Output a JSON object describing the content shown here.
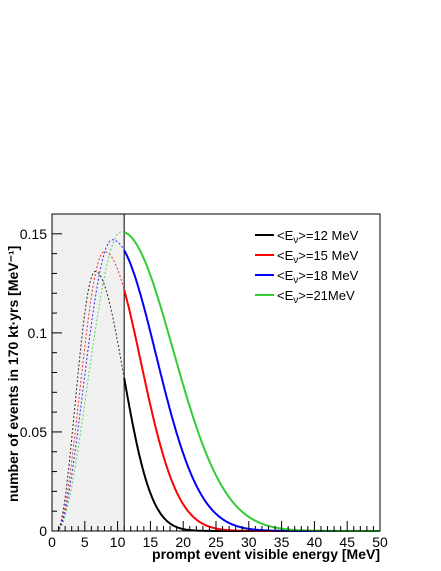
{
  "chart_data": {
    "type": "line",
    "title": "",
    "xlabel": "prompt event visible energy [MeV]",
    "ylabel": "number of events in 170 kt·yrs [MeV⁻¹]",
    "xlim": [
      0,
      50
    ],
    "ylim": [
      0,
      0.16
    ],
    "x_ticks": [
      "0",
      "5",
      "10",
      "15",
      "20",
      "25",
      "30",
      "35",
      "40",
      "45",
      "50"
    ],
    "y_ticks": [
      "0",
      "0.05",
      "0.1",
      "0.15"
    ],
    "grid": false,
    "legend_position": "top-right",
    "shaded_region": {
      "x_range": [
        0,
        11
      ],
      "color": "#f0f0f0"
    },
    "threshold_line_x": 11,
    "series": [
      {
        "name": "<Eν>=12 MeV",
        "legend_main": "<E",
        "legend_sub": "ν",
        "legend_tail": ">=12 MeV",
        "color": "#000000",
        "peak_x": 6.6,
        "peak_y": 0.131,
        "rise_start": 0.8,
        "shape": 1.8,
        "fall_scale": 4.28
      },
      {
        "name": "<Eν>=15 MeV",
        "legend_main": "<E",
        "legend_sub": "ν",
        "legend_tail": ">=15 MeV",
        "color": "#ff0000",
        "peak_x": 8.0,
        "peak_y": 0.141,
        "rise_start": 0.8,
        "shape": 1.8,
        "fall_scale": 5.54
      },
      {
        "name": "<Eν>=18 MeV",
        "legend_main": "<E",
        "legend_sub": "ν",
        "legend_tail": ">=18 MeV",
        "color": "#0000ff",
        "peak_x": 9.2,
        "peak_y": 0.147,
        "rise_start": 0.8,
        "shape": 1.8,
        "fall_scale": 6.64
      },
      {
        "name": "<Eν>=21 MeV",
        "legend_main": "<E",
        "legend_sub": "ν",
        "legend_tail": ">=21MeV",
        "color": "#33cc33",
        "peak_x": 10.6,
        "peak_y": 0.151,
        "rise_start": 0.8,
        "shape": 1.8,
        "fall_scale": 7.85
      }
    ]
  }
}
